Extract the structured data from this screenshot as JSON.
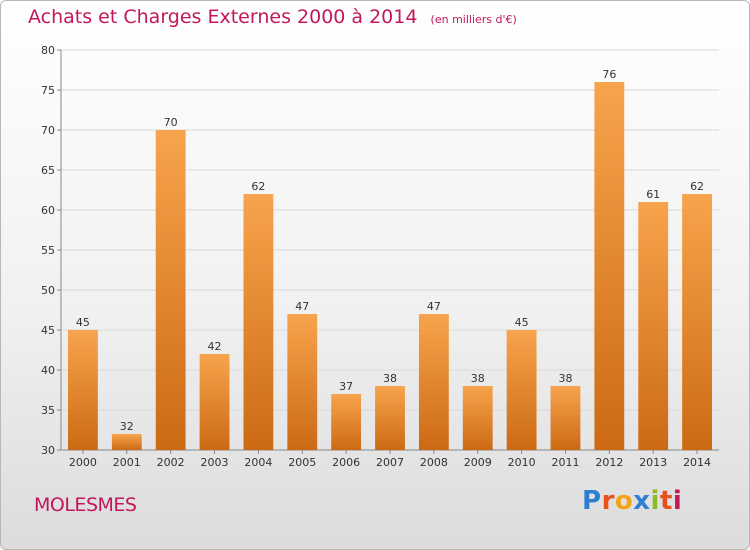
{
  "header": {
    "title": "Achats et Charges Externes 2000 à 2014",
    "subtitle": "(en milliers d'€)"
  },
  "footer": {
    "location": "MOLESMES",
    "logo": "Proxiti"
  },
  "colors": {
    "title": "#c2185b",
    "bar_light": "#f7a44c",
    "bar_dark": "#cc6a14"
  },
  "chart_data": {
    "type": "bar",
    "title": "Achats et Charges Externes 2000 à 2014",
    "subtitle": "(en milliers d'€)",
    "xlabel": "",
    "ylabel": "",
    "categories": [
      "2000",
      "2001",
      "2002",
      "2003",
      "2004",
      "2005",
      "2006",
      "2007",
      "2008",
      "2009",
      "2010",
      "2011",
      "2012",
      "2013",
      "2014"
    ],
    "values": [
      45,
      32,
      70,
      42,
      62,
      47,
      37,
      38,
      47,
      38,
      45,
      38,
      76,
      61,
      62
    ],
    "ylim": [
      30,
      80
    ],
    "yticks": [
      30,
      35,
      40,
      45,
      50,
      55,
      60,
      65,
      70,
      75,
      80
    ],
    "grid": true,
    "data_labels": true
  }
}
